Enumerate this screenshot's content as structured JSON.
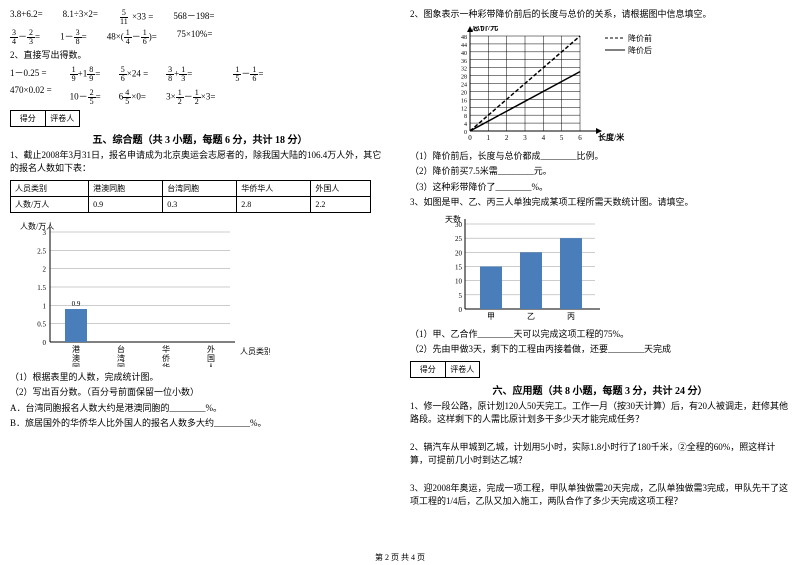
{
  "left": {
    "mathLine1": [
      "3.8+6.2=",
      "8.1÷3×2=",
      "×33 =",
      "568－198="
    ],
    "frac1": {
      "n": "5",
      "d": "11"
    },
    "mathLine2a": {
      "f1": {
        "n": "3",
        "d": "4"
      },
      "f2": {
        "n": "2",
        "d": "3"
      }
    },
    "mathLine2b": {
      "f": {
        "n": "3",
        "d": "8"
      }
    },
    "mathLine2c": {
      "f1": {
        "n": "1",
        "d": "4"
      },
      "f2": {
        "n": "1",
        "d": "6"
      }
    },
    "mathLine2d": "75×10%=",
    "q2": "2、直接写出得数。",
    "mathLine3": [
      "1－0.25 =",
      "470×0.02 ="
    ],
    "mathLine3b": [
      {
        "pre": "",
        "f1": {
          "n": "1",
          "d": "9"
        },
        "mid": "+1",
        "f2": {
          "n": "8",
          "d": "9"
        },
        "post": "="
      },
      {
        "pre": "10－",
        "f1": {
          "n": "2",
          "d": "5"
        },
        "post": "="
      }
    ],
    "mathLine3c": [
      {
        "f": {
          "n": "5",
          "d": "6"
        },
        "post": "×24 ="
      },
      {
        "pre": "6",
        "f": {
          "n": "4",
          "d": "5"
        },
        "post": "×0="
      }
    ],
    "mathLine3d": [
      {
        "f1": {
          "n": "3",
          "d": "8"
        },
        "mid": "+",
        "f2": {
          "n": "1",
          "d": "3"
        },
        "post": "="
      },
      {
        "pre": "3×",
        "f1": {
          "n": "1",
          "d": "2"
        },
        "mid": "－",
        "f2": {
          "n": "1",
          "d": "2"
        },
        "post": "×3="
      }
    ],
    "mathLine3e": [
      {
        "f1": {
          "n": "1",
          "d": "5"
        },
        "mid": "－",
        "f2": {
          "n": "1",
          "d": "6"
        },
        "post": "="
      }
    ],
    "score": {
      "a": "得分",
      "b": "评卷人"
    },
    "sec5": "五、综合题（共 3 小题，每题 6 分，共计 18 分）",
    "q5_1": "1、截止2008年3月31日，报名申请成为北京奥运会志愿者的，除我国大陆的106.4万人外，其它的报名人数如下表：",
    "table": {
      "r1": [
        "人员类别",
        "港澳同胞",
        "台湾同胞",
        "华侨华人",
        "外国人"
      ],
      "r2": [
        "人数/万人",
        "0.9",
        "0.3",
        "2.8",
        "2.2"
      ]
    },
    "chart1": {
      "ylabel": "人数/万人",
      "xlabel": "人员类别",
      "yticks": [
        "0",
        "0.5",
        "1",
        "1.5",
        "2",
        "2.5",
        "3"
      ],
      "cats": [
        "港澳同胞",
        "台湾同胞",
        "华侨华人",
        "外国人"
      ],
      "bars": [
        {
          "label": "0.9",
          "h": 0.9
        }
      ],
      "ymax": 3,
      "barColor": "#4a7ebb",
      "gridColor": "#999"
    },
    "q5_1_sub": [
      "（1）根据表里的人数，完成统计图。",
      "（2）写出百分数。（百分号前面保留一位小数）",
      "A．台湾同胞报名人数大约是港澳同胞的________%。",
      "B．旅居国外的华侨华人比外国人的报名人数多大约________%。"
    ]
  },
  "right": {
    "q2": "2、图象表示一种彩带降价前后的长度与总价的关系，请根据图中信息填空。",
    "chart2": {
      "ylabel": "总价/元",
      "xlabel": "长度/米",
      "legend": [
        "降价前",
        "降价后"
      ],
      "xticks": [
        "0",
        "1",
        "2",
        "3",
        "4",
        "5",
        "6"
      ],
      "yticks": [
        "0",
        "4",
        "8",
        "12",
        "16",
        "20",
        "24",
        "28",
        "32",
        "36",
        "40",
        "44",
        "48"
      ],
      "line1": [
        [
          0,
          0
        ],
        [
          6,
          48
        ]
      ],
      "line2": [
        [
          0,
          0
        ],
        [
          6,
          30
        ]
      ],
      "gridColor": "#000",
      "bg": "#ffffff"
    },
    "q2_sub": [
      "（1）降价前后，长度与总价都成________比例。",
      "（2）降价前买7.5米需________元。",
      "（3）这种彩带降价了________%。"
    ],
    "q3": "3、如图是甲、乙、丙三人单独完成某项工程所需天数统计图。请填空。",
    "chart3": {
      "ylabel": "天数",
      "yticks": [
        "0",
        "5",
        "10",
        "15",
        "20",
        "25",
        "30"
      ],
      "cats": [
        "甲",
        "乙",
        "丙"
      ],
      "bars": [
        15,
        20,
        25
      ],
      "ymax": 30,
      "barColor": "#4a7ebb",
      "gridColor": "#999"
    },
    "q3_sub": [
      "（1）甲、乙合作________天可以完成这项工程的75%。",
      "（2）先由甲做3天，剩下的工程由丙接着做，还要________天完成"
    ],
    "score": {
      "a": "得分",
      "b": "评卷人"
    },
    "sec6": "六、应用题（共 8 小题，每题 3 分，共计 24 分）",
    "q6": [
      "1、修一段公路，原计划120人50天完工。工作一月（按30天计算）后，有20人被调走，赶修其他路段。这样剩下的人需比原计划多干多少天才能完成任务？",
      "2、辆汽车从甲城到乙城，计划用5小时，实际1.8小时行了180千米，②全程的60%，照这样计算，可提前几小时到达乙城？",
      "3、迎2008年奥运，完成一项工程，甲队单独做需20天完成，乙队单独做需3完成，甲队先干了这项工程的1/4后，乙队又加入施工，两队合作了多少天完成这项工程？"
    ]
  },
  "footer": "第 2 页 共 4 页"
}
